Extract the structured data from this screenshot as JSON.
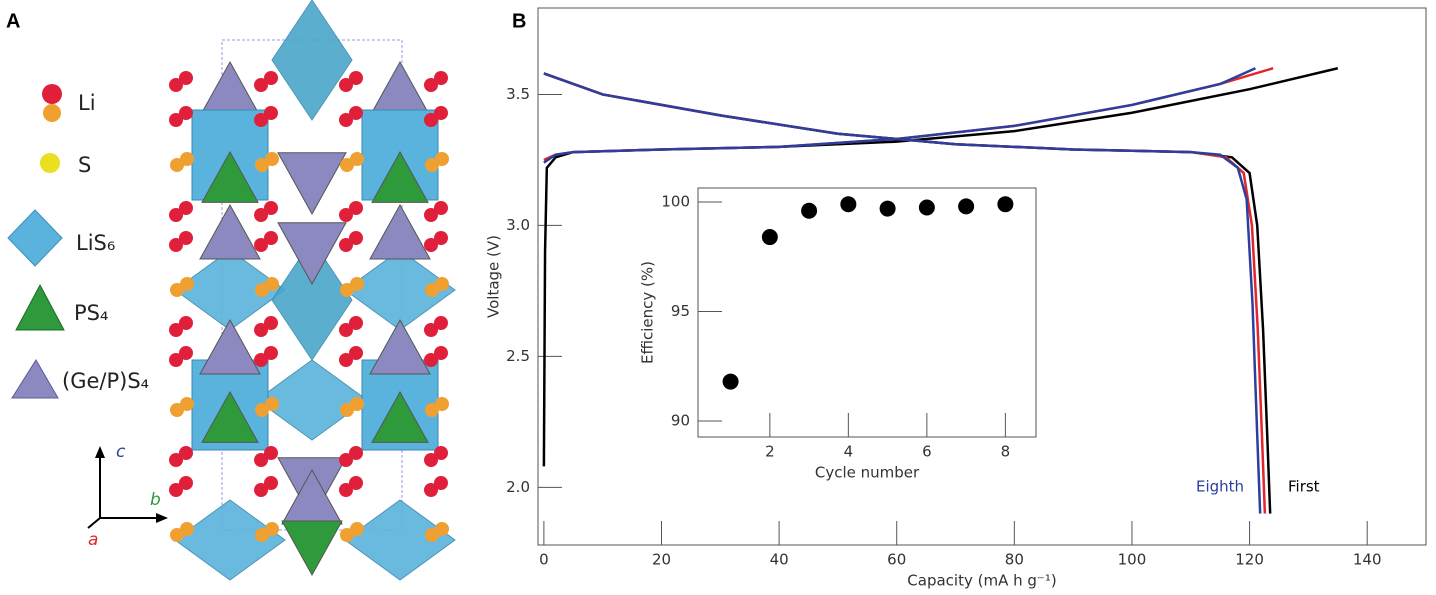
{
  "panel_a": {
    "label": "A",
    "legend": [
      "Li",
      "S",
      "LiS₆",
      "PS₄",
      "(Ge/P)S₄"
    ],
    "axes": {
      "c": "c",
      "b": "b",
      "a": "a"
    }
  },
  "panel_b": {
    "label": "B"
  },
  "chart_data": [
    {
      "type": "line",
      "xlabel": "Capacity (mA h g⁻¹)",
      "ylabel": "Voltage (V)",
      "xlim": [
        -1,
        150
      ],
      "ylim": [
        1.78,
        3.83
      ],
      "xticks": [
        0,
        20,
        40,
        60,
        80,
        100,
        120,
        140
      ],
      "yticks": [
        {
          "value": 2.0,
          "label": "2.0"
        },
        2.5,
        {
          "value": 3.0,
          "label": "3.0"
        },
        3.5
      ],
      "annotations": [
        {
          "text": "Eighth",
          "color": "#2b3f9e"
        },
        {
          "text": "First",
          "color": "#000000"
        }
      ],
      "series": [
        {
          "color": "#000000",
          "x": [
            0,
            0.2,
            0.5,
            2,
            5,
            20,
            40,
            60,
            80,
            100,
            120,
            135
          ],
          "values": [
            2.08,
            2.9,
            3.22,
            3.26,
            3.28,
            3.29,
            3.3,
            3.32,
            3.36,
            3.43,
            3.52,
            3.6
          ]
        },
        {
          "color": "#e3262b",
          "x": [
            0,
            2,
            5,
            20,
            40,
            60,
            80,
            100,
            115,
            124
          ],
          "values": [
            3.25,
            3.27,
            3.28,
            3.29,
            3.3,
            3.33,
            3.38,
            3.46,
            3.54,
            3.6
          ]
        },
        {
          "color": "#2b3f9e",
          "x": [
            0,
            2,
            5,
            20,
            40,
            60,
            80,
            100,
            115,
            121
          ],
          "values": [
            3.24,
            3.27,
            3.28,
            3.29,
            3.3,
            3.33,
            3.38,
            3.46,
            3.54,
            3.6
          ]
        },
        {
          "color": "#000000",
          "x": [
            0,
            10,
            30,
            50,
            70,
            90,
            110,
            117,
            120,
            121.3,
            122.3,
            123,
            123.5
          ],
          "values": [
            3.58,
            3.5,
            3.42,
            3.35,
            3.31,
            3.29,
            3.28,
            3.26,
            3.2,
            3.0,
            2.6,
            2.2,
            1.9
          ]
        },
        {
          "color": "#e3262b",
          "x": [
            0,
            10,
            30,
            50,
            70,
            90,
            110,
            116,
            119,
            120.4,
            121.4,
            122.1,
            122.6
          ],
          "values": [
            3.58,
            3.5,
            3.42,
            3.35,
            3.31,
            3.29,
            3.28,
            3.26,
            3.2,
            3.0,
            2.6,
            2.2,
            1.9
          ]
        },
        {
          "color": "#2b3f9e",
          "x": [
            0,
            10,
            30,
            50,
            70,
            90,
            110,
            115,
            118,
            119.5,
            120.5,
            121.3,
            121.8
          ],
          "values": [
            3.58,
            3.5,
            3.42,
            3.35,
            3.31,
            3.29,
            3.28,
            3.27,
            3.22,
            3.1,
            2.7,
            2.2,
            1.9
          ]
        }
      ]
    },
    {
      "type": "scatter",
      "xlabel": "Cycle number",
      "ylabel": "Efficiency (%)",
      "xlim": [
        0.17,
        8.78
      ],
      "ylim": [
        89.27,
        100.64
      ],
      "xticks": [
        2,
        4,
        6,
        8
      ],
      "yticks": [
        90,
        95,
        100
      ],
      "color": "#000000",
      "x": [
        1,
        2,
        3,
        4,
        5,
        6,
        7,
        8
      ],
      "values": [
        91.8,
        98.4,
        99.6,
        99.9,
        99.7,
        99.75,
        99.8,
        99.9
      ]
    }
  ]
}
